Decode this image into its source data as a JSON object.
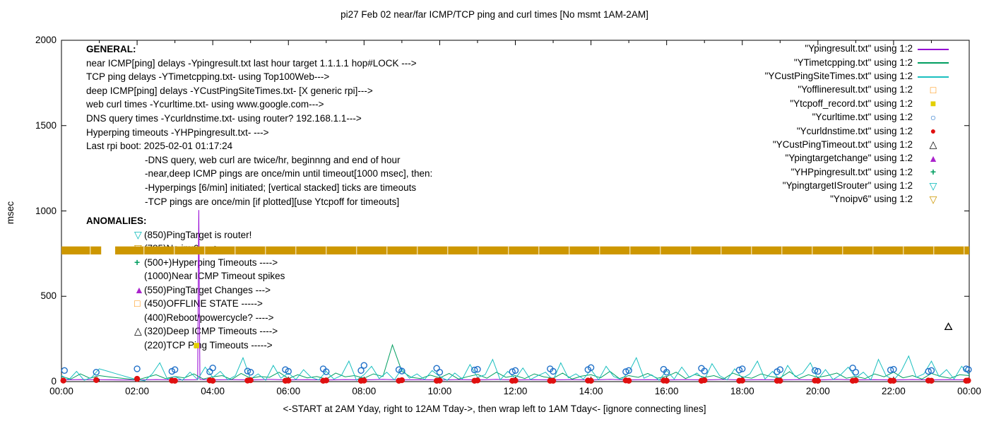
{
  "general": {
    "heading": "GENERAL:",
    "lines": [
      "near ICMP[ping] delays -Ypingresult.txt last hour target 1.1.1.1 hop#LOCK --->",
      "TCP ping delays -YTimetcpping.txt- using Top100Web--->",
      "deep ICMP[ping] delays -YCustPingSiteTimes.txt- [X generic rpi]--->",
      "web curl times -Ycurltime.txt- using www.google.com--->",
      "DNS query times -Ycurldnstime.txt- using router? 192.168.1.1--->",
      "Hyperping timeouts -YHPpingresult.txt- --->",
      "Last rpi boot: 2025-02-01 01:17:24"
    ],
    "indented_lines": [
      "-DNS query, web curl are twice/hr, beginnng and end of hour",
      "-near,deep ICMP pings are once/min until timeout[1000 msec], then:",
      "-Hyperpings [6/min] initiated; [vertical stacked] ticks are timeouts",
      "-TCP pings are once/min [if plotted][use Ytcpoff for timeouts]"
    ]
  },
  "anomalies": {
    "heading": "ANOMALIES:",
    "items": [
      {
        "icon": "triangle-down-open",
        "color": "#00b8b8",
        "label": "(850)PingTarget is router!"
      },
      {
        "icon": "triangle-down-open",
        "color": "#cd9700",
        "label": "(785)No ipv6 ---->"
      },
      {
        "icon": "plus",
        "color": "#009e60",
        "label": "(500+)Hyperping Timeouts ---->"
      },
      {
        "icon": "none",
        "color": "#000000",
        "label": "(1000)Near ICMP Timeout spikes"
      },
      {
        "icon": "triangle-up-filled",
        "color": "#aa22cc",
        "label": "(550)PingTarget Changes --->"
      },
      {
        "icon": "square-open",
        "color": "#ff8f00",
        "label": "(450)OFFLINE STATE ----->"
      },
      {
        "icon": "none",
        "color": "#000000",
        "label": "(400)Reboot/powercycle? ---->"
      },
      {
        "icon": "triangle-up-open",
        "color": "#000000",
        "label": "(320)Deep ICMP Timeouts ---->"
      },
      {
        "icon": "none",
        "color": "#000000",
        "label": "(220)TCP Ping Timeouts ----->"
      }
    ]
  },
  "chart_data": {
    "type": "line",
    "title": "pi27 Feb 02  near/far ICMP/TCP ping and curl times [No msmt 1AM-2AM]",
    "ylabel": "msec",
    "xlabel": "<-START at 2AM Yday, right to 12AM Tday->, then wrap left to 1AM Tday<- [ignore connecting lines]",
    "xlim": [
      0,
      24
    ],
    "ylim": [
      0,
      2000
    ],
    "y_ticks": [
      0,
      500,
      1000,
      1500,
      2000
    ],
    "x_ticks": [
      "00:00",
      "02:00",
      "04:00",
      "06:00",
      "08:00",
      "10:00",
      "12:00",
      "14:00",
      "16:00",
      "18:00",
      "20:00",
      "22:00",
      "00:00"
    ],
    "x_tick_hours": [
      0,
      2,
      4,
      6,
      8,
      10,
      12,
      14,
      16,
      18,
      20,
      22,
      24
    ],
    "grid": false,
    "legend_position": "top-right-inside",
    "band": {
      "color": "#cd9700",
      "y_range_msec": [
        745,
        792
      ],
      "segments_hours": [
        [
          0,
          1.05
        ],
        [
          1.42,
          24
        ]
      ]
    },
    "series": [
      {
        "name": "\"Ypingresult.txt\" using 1:2",
        "style": "line",
        "marker": "none",
        "color": "#9400d3",
        "points": [
          [
            0,
            10
          ],
          [
            0.5,
            12
          ],
          [
            1,
            11
          ],
          [
            1.5,
            10
          ],
          [
            2,
            9
          ],
          [
            2.5,
            12
          ],
          [
            3,
            10
          ],
          [
            3.5,
            11
          ],
          [
            3.6,
            12
          ],
          [
            3.63,
            1005
          ],
          [
            3.66,
            13
          ],
          [
            4,
            10
          ],
          [
            4.5,
            12
          ],
          [
            5,
            9
          ],
          [
            5.5,
            13
          ],
          [
            6,
            10
          ],
          [
            6.5,
            11
          ],
          [
            7,
            9
          ],
          [
            7.5,
            12
          ],
          [
            8,
            10
          ],
          [
            8.5,
            13
          ],
          [
            9,
            10
          ],
          [
            9.5,
            11
          ],
          [
            10,
            9
          ],
          [
            10.5,
            12
          ],
          [
            11,
            10
          ],
          [
            11.5,
            13
          ],
          [
            12,
            9
          ],
          [
            12.5,
            11
          ],
          [
            13,
            10
          ],
          [
            13.5,
            12
          ],
          [
            14,
            9
          ],
          [
            14.5,
            13
          ],
          [
            15,
            10
          ],
          [
            15.5,
            11
          ],
          [
            16,
            9
          ],
          [
            16.5,
            12
          ],
          [
            17,
            10
          ],
          [
            17.5,
            13
          ],
          [
            18,
            9
          ],
          [
            18.5,
            11
          ],
          [
            19,
            10
          ],
          [
            19.5,
            12
          ],
          [
            20,
            9
          ],
          [
            20.5,
            13
          ],
          [
            21,
            10
          ],
          [
            21.5,
            11
          ],
          [
            22,
            9
          ],
          [
            22.5,
            12
          ],
          [
            23,
            10
          ],
          [
            23.5,
            11
          ],
          [
            24,
            10
          ]
        ]
      },
      {
        "name": "\"YTimetcpping.txt\" using 1:2",
        "style": "line",
        "marker": "none",
        "color": "#009e60",
        "x_start": 0,
        "x_step": 0.25,
        "values": [
          30,
          15,
          45,
          20,
          35,
          28,
          22,
          16,
          10,
          25,
          40,
          18,
          30,
          22,
          45,
          15,
          28,
          35,
          12,
          48,
          20,
          30,
          25,
          55,
          18,
          40,
          22,
          30,
          15,
          50,
          28,
          35,
          20,
          45,
          30,
          215,
          60,
          25,
          18,
          38,
          22,
          48,
          15,
          30,
          42,
          20,
          55,
          25,
          35,
          18,
          45,
          28,
          20,
          50,
          15,
          32,
          40,
          22,
          60,
          18,
          35,
          25,
          48,
          20,
          30,
          55,
          18,
          42,
          25,
          35,
          15,
          50,
          28,
          20,
          45,
          30,
          22,
          58,
          18,
          40,
          25,
          35,
          50,
          20,
          30,
          18,
          45,
          28,
          55,
          22,
          35,
          15,
          48,
          30,
          20,
          40,
          35
        ]
      },
      {
        "name": "\"YCustPingSiteTimes.txt\" using 1:2",
        "style": "line",
        "marker": "none",
        "color": "#1abfbf",
        "x_start": 0,
        "x_step": 0.2,
        "values": [
          35,
          12,
          60,
          8,
          25,
          75,
          62,
          49,
          36,
          23,
          12,
          5,
          45,
          110,
          15,
          30,
          8,
          55,
          12,
          85,
          25,
          60,
          10,
          35,
          140,
          15,
          45,
          8,
          95,
          20,
          50,
          12,
          70,
          25,
          10,
          60,
          15,
          35,
          120,
          8,
          40,
          90,
          18,
          55,
          10,
          75,
          20,
          45,
          12,
          65,
          30,
          8,
          50,
          15,
          100,
          25,
          40,
          130,
          10,
          60,
          18,
          80,
          12,
          35,
          55,
          8,
          110,
          22,
          45,
          15,
          70,
          10,
          90,
          30,
          12,
          55,
          140,
          20,
          40,
          8,
          65,
          15,
          85,
          25,
          50,
          12,
          105,
          35,
          10,
          75,
          20,
          45,
          120,
          15,
          60,
          8,
          95,
          28,
          50,
          110,
          15,
          70,
          12,
          40,
          85,
          22,
          55,
          10,
          130,
          35,
          8,
          60,
          150,
          25,
          45,
          120,
          30,
          70,
          15,
          90,
          40
        ]
      },
      {
        "name": "\"Yofflineresult.txt\" using 1:2",
        "style": "marker",
        "marker": "square-open",
        "color": "#ff8f00",
        "points": []
      },
      {
        "name": "\"Ytcpoff_record.txt\" using 1:2",
        "style": "marker",
        "marker": "square-filled",
        "color": "#e3cf00",
        "points": [
          [
            3.57,
            211
          ]
        ]
      },
      {
        "name": "\"Ycurltime.txt\" using 1:2",
        "style": "marker",
        "marker": "circle-open",
        "color": "#1e6fc8",
        "points": [
          [
            0.08,
            65
          ],
          [
            0.92,
            55
          ],
          [
            2,
            75
          ],
          [
            2.92,
            60
          ],
          [
            3,
            70
          ],
          [
            3.92,
            58
          ],
          [
            4,
            80
          ],
          [
            4.92,
            62
          ],
          [
            5,
            55
          ],
          [
            5.92,
            70
          ],
          [
            6,
            60
          ],
          [
            6.92,
            75
          ],
          [
            7,
            58
          ],
          [
            7.92,
            65
          ],
          [
            8,
            95
          ],
          [
            8.92,
            70
          ],
          [
            9,
            62
          ],
          [
            9.92,
            78
          ],
          [
            10,
            55
          ],
          [
            10.92,
            68
          ],
          [
            11,
            72
          ],
          [
            11.92,
            58
          ],
          [
            12,
            65
          ],
          [
            12.92,
            75
          ],
          [
            13,
            60
          ],
          [
            13.92,
            70
          ],
          [
            14,
            82
          ],
          [
            14.92,
            58
          ],
          [
            15,
            65
          ],
          [
            15.92,
            72
          ],
          [
            16,
            55
          ],
          [
            16.92,
            78
          ],
          [
            17,
            62
          ],
          [
            17.92,
            68
          ],
          [
            18,
            75
          ],
          [
            18.92,
            58
          ],
          [
            19,
            70
          ],
          [
            19.92,
            65
          ],
          [
            20,
            60
          ],
          [
            20.92,
            80
          ],
          [
            21,
            55
          ],
          [
            21.92,
            68
          ],
          [
            22,
            72
          ],
          [
            22.92,
            60
          ],
          [
            23,
            65
          ],
          [
            23.92,
            75
          ],
          [
            23.98,
            70
          ]
        ]
      },
      {
        "name": "\"Ycurldnstime.txt\" using 1:2",
        "style": "marker",
        "marker": "circle-filled",
        "color": "#e01010",
        "points": [
          [
            0.05,
            6
          ],
          [
            0.92,
            9
          ],
          [
            2,
            16
          ],
          [
            2.92,
            6
          ],
          [
            3,
            5
          ],
          [
            3.92,
            7
          ],
          [
            4,
            5
          ],
          [
            4.92,
            6
          ],
          [
            5,
            8
          ],
          [
            5.92,
            5
          ],
          [
            6,
            6
          ],
          [
            6.92,
            5
          ],
          [
            7,
            7
          ],
          [
            7.92,
            5
          ],
          [
            8,
            6
          ],
          [
            8.92,
            5
          ],
          [
            9,
            8
          ],
          [
            9.92,
            5
          ],
          [
            10,
            6
          ],
          [
            10.92,
            5
          ],
          [
            11,
            7
          ],
          [
            11.92,
            5
          ],
          [
            12,
            6
          ],
          [
            12.92,
            5
          ],
          [
            13,
            5
          ],
          [
            13.92,
            6
          ],
          [
            14,
            5
          ],
          [
            14.92,
            7
          ],
          [
            15,
            5
          ],
          [
            15.92,
            6
          ],
          [
            16,
            5
          ],
          [
            16.92,
            5
          ],
          [
            17,
            8
          ],
          [
            17.92,
            5
          ],
          [
            18,
            6
          ],
          [
            18.92,
            5
          ],
          [
            19,
            5
          ],
          [
            19.92,
            6
          ],
          [
            20,
            5
          ],
          [
            20.92,
            5
          ],
          [
            21,
            7
          ],
          [
            21.92,
            5
          ],
          [
            22,
            5
          ],
          [
            22.92,
            6
          ],
          [
            23,
            5
          ],
          [
            23.92,
            5
          ],
          [
            23.97,
            6
          ]
        ]
      },
      {
        "name": "\"YCustPingTimeout.txt\" using 1:2",
        "style": "marker",
        "marker": "triangle-up-open",
        "color": "#000000",
        "points": [
          [
            23.45,
            320
          ]
        ]
      },
      {
        "name": "\"Ypingtargetchange\" using 1:2",
        "style": "marker",
        "marker": "triangle-up-filled",
        "color": "#aa22cc",
        "points": []
      },
      {
        "name": "\"YHPpingresult.txt\" using 1:2",
        "style": "marker",
        "marker": "plus",
        "color": "#009e60",
        "points": []
      },
      {
        "name": "\"YpingtargetISrouter\" using 1:2",
        "style": "marker",
        "marker": "triangle-down-open",
        "color": "#00b8b8",
        "points": []
      },
      {
        "name": "\"Ynoipv6\" using 1:2",
        "style": "marker",
        "marker": "triangle-down-open",
        "color": "#cd9700",
        "points": []
      }
    ]
  }
}
